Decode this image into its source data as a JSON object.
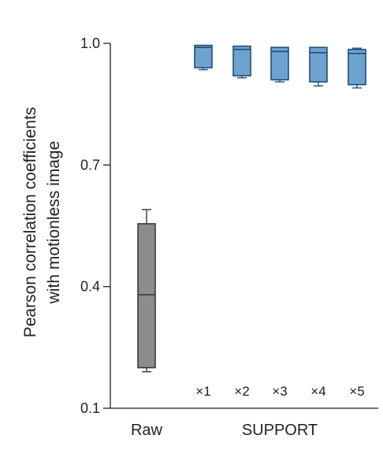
{
  "chart_data": {
    "type": "box",
    "title": "",
    "ylabel_line1": "Pearson correlation coefficients",
    "ylabel_line2": "with motionless image",
    "xlabel": "",
    "ylim": [
      0.1,
      1.0
    ],
    "yticks": [
      1.0,
      0.7,
      0.4,
      0.1
    ],
    "ytick_labels": [
      "1.0",
      "0.7",
      "0.4",
      "0.1"
    ],
    "grid": false,
    "legend": "none",
    "group_labels": {
      "raw": "Raw",
      "support": "SUPPORT"
    },
    "boxes": [
      {
        "label": "",
        "group": "Raw",
        "whisker_low": 0.19,
        "q1": 0.2,
        "median": 0.38,
        "q3": 0.555,
        "whisker_high": 0.59,
        "color": "#8c8c8c"
      },
      {
        "label": "×1",
        "group": "SUPPORT",
        "whisker_low": 0.935,
        "q1": 0.94,
        "median": 0.99,
        "q3": 0.995,
        "whisker_high": 0.995,
        "color": "#6ea3cf"
      },
      {
        "label": "×2",
        "group": "SUPPORT",
        "whisker_low": 0.915,
        "q1": 0.92,
        "median": 0.985,
        "q3": 0.993,
        "whisker_high": 0.993,
        "color": "#6ea3cf"
      },
      {
        "label": "×3",
        "group": "SUPPORT",
        "whisker_low": 0.905,
        "q1": 0.91,
        "median": 0.98,
        "q3": 0.99,
        "whisker_high": 0.99,
        "color": "#6ea3cf"
      },
      {
        "label": "×4",
        "group": "SUPPORT",
        "whisker_low": 0.895,
        "q1": 0.905,
        "median": 0.977,
        "q3": 0.99,
        "whisker_high": 0.99,
        "color": "#6ea3cf"
      },
      {
        "label": "×5",
        "group": "SUPPORT",
        "whisker_low": 0.89,
        "q1": 0.898,
        "median": 0.975,
        "q3": 0.985,
        "whisker_high": 0.988,
        "color": "#6ea3cf"
      }
    ],
    "colors": {
      "raw_fill": "#8c8c8c",
      "raw_stroke": "#3a3a3a",
      "support_fill": "#6ea3cf",
      "support_stroke": "#1f4f79",
      "axis": "#222222"
    }
  }
}
